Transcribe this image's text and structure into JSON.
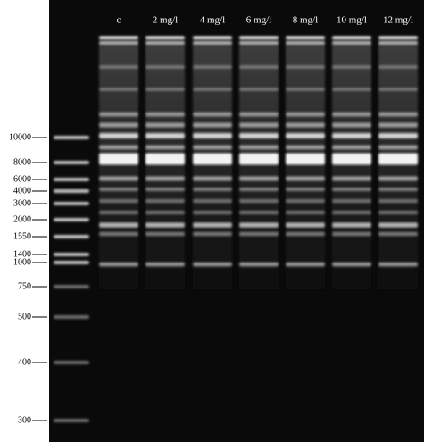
{
  "lanes": [
    "c",
    "2 mg/l",
    "4 mg/l",
    "6 mg/l",
    "8 mg/l",
    "10 mg/l",
    "12 mg/l"
  ],
  "markers": [
    "10000",
    "8000",
    "6000",
    "4000",
    "3000",
    "2000",
    "1550",
    "1400",
    "1000",
    "750",
    "500",
    "400",
    "300"
  ]
}
